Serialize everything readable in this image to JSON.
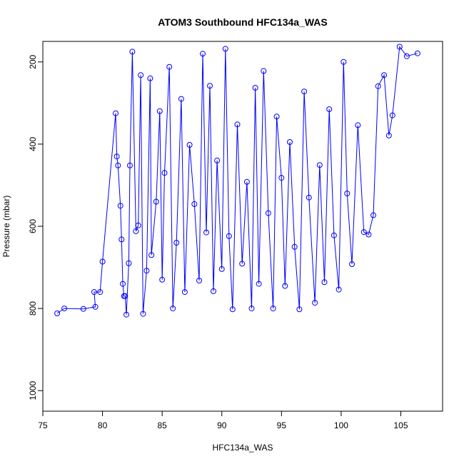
{
  "chart_data": {
    "type": "line",
    "title": "ATOM3 Southbound HFC134a_WAS",
    "xlabel": "HFC134a_WAS",
    "ylabel": "Pressure (mbar)",
    "xlim": [
      75,
      108.5
    ],
    "ylim": [
      1050,
      150
    ],
    "y_reversed": true,
    "grid": false,
    "x_ticks": [
      75,
      80,
      85,
      90,
      95,
      100,
      105
    ],
    "y_ticks": [
      200,
      400,
      600,
      800,
      1000
    ],
    "color": "#0000ff",
    "marker": "open-circle",
    "series": [
      {
        "points": [
          [
            76.2,
            812
          ],
          [
            76.8,
            800
          ],
          [
            78.4,
            801
          ],
          [
            79.4,
            796
          ],
          [
            79.3,
            760
          ],
          [
            79.8,
            760
          ],
          [
            80.0,
            686
          ],
          [
            81.1,
            325
          ],
          [
            81.2,
            430
          ],
          [
            81.3,
            452
          ],
          [
            81.5,
            550
          ],
          [
            81.6,
            632
          ],
          [
            81.7,
            740
          ],
          [
            81.8,
            770
          ],
          [
            81.9,
            770
          ],
          [
            82.0,
            815
          ],
          [
            82.2,
            690
          ],
          [
            82.3,
            452
          ],
          [
            82.5,
            175
          ],
          [
            82.8,
            612
          ],
          [
            83.0,
            598
          ],
          [
            83.2,
            232
          ],
          [
            83.4,
            813
          ],
          [
            83.7,
            708
          ],
          [
            84.0,
            240
          ],
          [
            84.1,
            670
          ],
          [
            84.5,
            540
          ],
          [
            84.8,
            320
          ],
          [
            85.0,
            730
          ],
          [
            85.2,
            470
          ],
          [
            85.6,
            212
          ],
          [
            85.9,
            800
          ],
          [
            86.2,
            640
          ],
          [
            86.6,
            290
          ],
          [
            86.9,
            760
          ],
          [
            87.3,
            402
          ],
          [
            87.7,
            546
          ],
          [
            88.1,
            732
          ],
          [
            88.4,
            180
          ],
          [
            88.7,
            615
          ],
          [
            89.0,
            258
          ],
          [
            89.3,
            758
          ],
          [
            89.6,
            440
          ],
          [
            90.0,
            704
          ],
          [
            90.3,
            168
          ],
          [
            90.6,
            624
          ],
          [
            90.9,
            802
          ],
          [
            91.3,
            352
          ],
          [
            91.7,
            691
          ],
          [
            92.1,
            492
          ],
          [
            92.5,
            800
          ],
          [
            92.8,
            263
          ],
          [
            93.1,
            740
          ],
          [
            93.5,
            222
          ],
          [
            93.9,
            568
          ],
          [
            94.3,
            800
          ],
          [
            94.6,
            333
          ],
          [
            95.0,
            482
          ],
          [
            95.3,
            745
          ],
          [
            95.7,
            395
          ],
          [
            96.1,
            650
          ],
          [
            96.5,
            802
          ],
          [
            96.9,
            272
          ],
          [
            97.3,
            530
          ],
          [
            97.8,
            786
          ],
          [
            98.2,
            451
          ],
          [
            98.6,
            736
          ],
          [
            99.0,
            315
          ],
          [
            99.4,
            622
          ],
          [
            99.8,
            754
          ],
          [
            100.2,
            200
          ],
          [
            100.5,
            520
          ],
          [
            100.9,
            692
          ],
          [
            101.4,
            354
          ],
          [
            101.9,
            614
          ],
          [
            102.3,
            620
          ],
          [
            102.7,
            573
          ],
          [
            103.1,
            259
          ],
          [
            103.6,
            232
          ],
          [
            104.0,
            379
          ],
          [
            104.3,
            330
          ],
          [
            104.9,
            163
          ],
          [
            105.5,
            186
          ],
          [
            106.4,
            179
          ]
        ]
      }
    ]
  }
}
